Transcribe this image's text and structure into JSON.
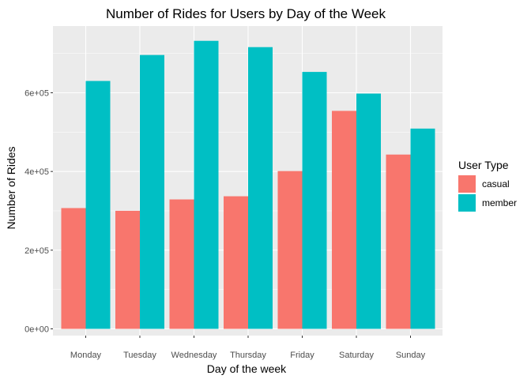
{
  "chart_data": {
    "type": "bar",
    "title": "Number of Rides for Users by Day of the Week",
    "xlabel": "Day of the week",
    "ylabel": "Number of Rides",
    "categories": [
      "Monday",
      "Tuesday",
      "Wednesday",
      "Thursday",
      "Friday",
      "Saturday",
      "Sunday"
    ],
    "series": [
      {
        "name": "casual",
        "color": "#F8766D",
        "values": [
          307000,
          300000,
          329000,
          337000,
          401000,
          554000,
          443000
        ]
      },
      {
        "name": "member",
        "color": "#00BFC4",
        "values": [
          630000,
          696000,
          732000,
          716000,
          653000,
          598000,
          509000
        ]
      }
    ],
    "ylim": [
      0,
      760000
    ],
    "yticks": [
      0,
      200000,
      400000,
      600000
    ],
    "ytick_labels": [
      "0e+00",
      "2e+05",
      "4e+05",
      "6e+05"
    ],
    "legend": {
      "title": "User Type",
      "position": "right"
    },
    "grid": true
  }
}
